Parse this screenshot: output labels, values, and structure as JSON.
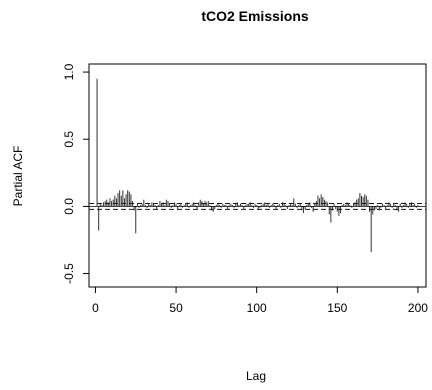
{
  "chart_data": {
    "type": "bar",
    "title": "tCO2 Emissions",
    "xlabel": "Lag",
    "ylabel": "Partial ACF",
    "xlim": [
      -4,
      205
    ],
    "ylim": [
      -0.6,
      1.06
    ],
    "x_ticks": [
      0,
      50,
      100,
      150,
      200
    ],
    "y_ticks": [
      -0.5,
      0.0,
      0.5,
      1.0
    ],
    "x_tick_labels": [
      "0",
      "50",
      "100",
      "150",
      "200"
    ],
    "y_tick_labels": [
      "-0.5",
      "0.0",
      "0.5",
      "1.0"
    ],
    "grid": false,
    "legend": "none",
    "confidence_limit": 0.022,
    "colors": {
      "bars": "#333333",
      "confidence": "#0000cc",
      "frame": "#000000"
    },
    "x": [
      1,
      2,
      3,
      4,
      5,
      6,
      7,
      8,
      9,
      10,
      11,
      12,
      13,
      14,
      15,
      16,
      17,
      18,
      19,
      20,
      21,
      22,
      23,
      24,
      25,
      26,
      27,
      28,
      29,
      30,
      31,
      32,
      33,
      34,
      35,
      36,
      37,
      38,
      39,
      40,
      41,
      42,
      43,
      44,
      45,
      46,
      47,
      48,
      49,
      50,
      51,
      52,
      53,
      54,
      55,
      56,
      57,
      58,
      59,
      60,
      61,
      62,
      63,
      64,
      65,
      66,
      67,
      68,
      69,
      70,
      71,
      72,
      73,
      74,
      75,
      76,
      77,
      78,
      79,
      80,
      81,
      82,
      83,
      84,
      85,
      86,
      87,
      88,
      89,
      90,
      91,
      92,
      93,
      94,
      95,
      96,
      97,
      98,
      99,
      100,
      101,
      102,
      103,
      104,
      105,
      106,
      107,
      108,
      109,
      110,
      111,
      112,
      113,
      114,
      115,
      116,
      117,
      118,
      119,
      120,
      121,
      122,
      123,
      124,
      125,
      126,
      127,
      128,
      129,
      130,
      131,
      132,
      133,
      134,
      135,
      136,
      137,
      138,
      139,
      140,
      141,
      142,
      143,
      144,
      145,
      146,
      147,
      148,
      149,
      150,
      151,
      152,
      153,
      154,
      155,
      156,
      157,
      158,
      159,
      160,
      161,
      162,
      163,
      164,
      165,
      166,
      167,
      168,
      169,
      170,
      171,
      172,
      173,
      174,
      175,
      176,
      177,
      178,
      179,
      180,
      181,
      182,
      183,
      184,
      185,
      186,
      187,
      188,
      189,
      190,
      191,
      192,
      193,
      194,
      195,
      196,
      197,
      198,
      199,
      200
    ],
    "values": [
      0.95,
      -0.18,
      0.02,
      0.01,
      0.03,
      0.04,
      0.05,
      0.03,
      0.06,
      0.04,
      0.05,
      0.08,
      0.06,
      0.1,
      0.12,
      0.08,
      0.12,
      0.06,
      0.09,
      0.12,
      0.11,
      0.09,
      0.04,
      -0.03,
      -0.2,
      0.02,
      -0.01,
      0.01,
      0.02,
      0.05,
      0.01,
      -0.01,
      0.02,
      0.01,
      0.03,
      0.02,
      0.01,
      -0.02,
      0.01,
      0.04,
      0.02,
      0.03,
      0.01,
      0.05,
      0.04,
      0.02,
      -0.01,
      0.01,
      0.03,
      0.02,
      -0.02,
      0.01,
      0.02,
      -0.01,
      0.01,
      0.02,
      0.03,
      -0.01,
      0.01,
      0.02,
      0.03,
      0.01,
      -0.02,
      0.03,
      0.05,
      0.04,
      0.02,
      0.04,
      0.03,
      0.04,
      0.01,
      -0.03,
      -0.04,
      -0.02,
      0.01,
      0.02,
      0.01,
      -0.01,
      0.02,
      0.01,
      0.01,
      -0.02,
      0.01,
      0.02,
      0.01,
      -0.01,
      0.02,
      0.03,
      0.01,
      0.02,
      0.01,
      -0.02,
      0.01,
      0.02,
      0.02,
      0.03,
      0.01,
      -0.01,
      0.02,
      0.01,
      -0.02,
      -0.01,
      0.01,
      0.02,
      0.03,
      0.01,
      0.02,
      -0.01,
      0.01,
      0.02,
      0.01,
      -0.02,
      0.01,
      0.02,
      -0.01,
      0.03,
      0.02,
      0.01,
      -0.02,
      0.01,
      0.02,
      0.01,
      0.06,
      0.02,
      -0.01,
      0.01,
      0.02,
      -0.03,
      -0.05,
      -0.02,
      0.01,
      0.02,
      0.03,
      -0.01,
      -0.04,
      0.02,
      0.04,
      0.08,
      0.06,
      0.09,
      0.07,
      0.05,
      0.04,
      0.03,
      -0.06,
      -0.12,
      -0.03,
      0.02,
      -0.02,
      -0.04,
      -0.07,
      -0.05,
      0.01,
      0.02,
      0.01,
      0.03,
      0.02,
      0.01,
      -0.01,
      0.02,
      0.03,
      0.05,
      0.06,
      0.1,
      0.08,
      0.07,
      0.09,
      0.08,
      0.05,
      -0.04,
      -0.34,
      -0.06,
      -0.03,
      -0.02,
      0.01,
      -0.03,
      -0.01,
      0.02,
      0.01,
      -0.02,
      0.01,
      0.03,
      0.02,
      -0.01,
      0.02,
      0.01,
      -0.03,
      -0.04,
      0.02,
      -0.01,
      0.01,
      0.03,
      0.02,
      -0.01,
      0.02,
      0.03,
      0.01,
      0.02,
      -0.01,
      0.01
    ]
  }
}
